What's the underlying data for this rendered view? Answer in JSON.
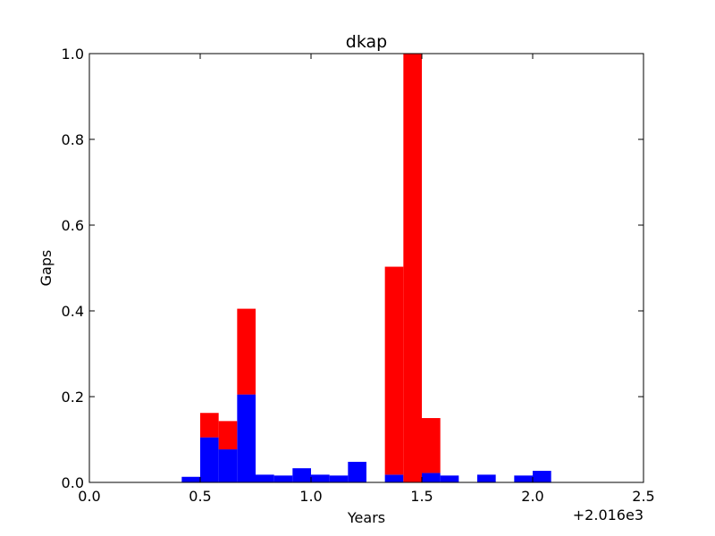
{
  "chart_data": {
    "type": "bar",
    "title": "dkap",
    "xlabel": "Years",
    "ylabel": "Gaps",
    "x_offset_text": "+2.016e3",
    "xlim": [
      0.0,
      2.5
    ],
    "ylim": [
      0.0,
      1.0
    ],
    "x_ticks": [
      0.0,
      0.5,
      1.0,
      1.5,
      2.0,
      2.5
    ],
    "x_tick_labels": [
      "0.0",
      "0.5",
      "1.0",
      "1.5",
      "2.0",
      "2.5"
    ],
    "y_ticks": [
      0.0,
      0.2,
      0.4,
      0.6,
      0.8,
      1.0
    ],
    "y_tick_labels": [
      "0.0",
      "0.2",
      "0.4",
      "0.6",
      "0.8",
      "1.0"
    ],
    "grid": false,
    "legend": "none",
    "stacked": true,
    "bin_width": 0.0833,
    "bin_starts": [
      0.4167,
      0.5,
      0.5833,
      0.6667,
      0.75,
      0.8333,
      0.9167,
      1.0,
      1.0833,
      1.1667,
      1.3333,
      1.4167,
      1.5,
      1.5833,
      1.75,
      1.9167,
      2.0
    ],
    "series": [
      {
        "color": "#0000ff",
        "values": [
          0.013,
          0.105,
          0.077,
          0.205,
          0.018,
          0.016,
          0.033,
          0.018,
          0.016,
          0.048,
          0.018,
          0.0,
          0.022,
          0.016,
          0.018,
          0.016,
          0.027
        ]
      },
      {
        "color": "#ff0000",
        "values": [
          0.0,
          0.057,
          0.066,
          0.2,
          0.0,
          0.0,
          0.0,
          0.0,
          0.0,
          0.0,
          0.485,
          1.0,
          0.128,
          0.0,
          0.0,
          0.0,
          0.0
        ]
      }
    ]
  }
}
